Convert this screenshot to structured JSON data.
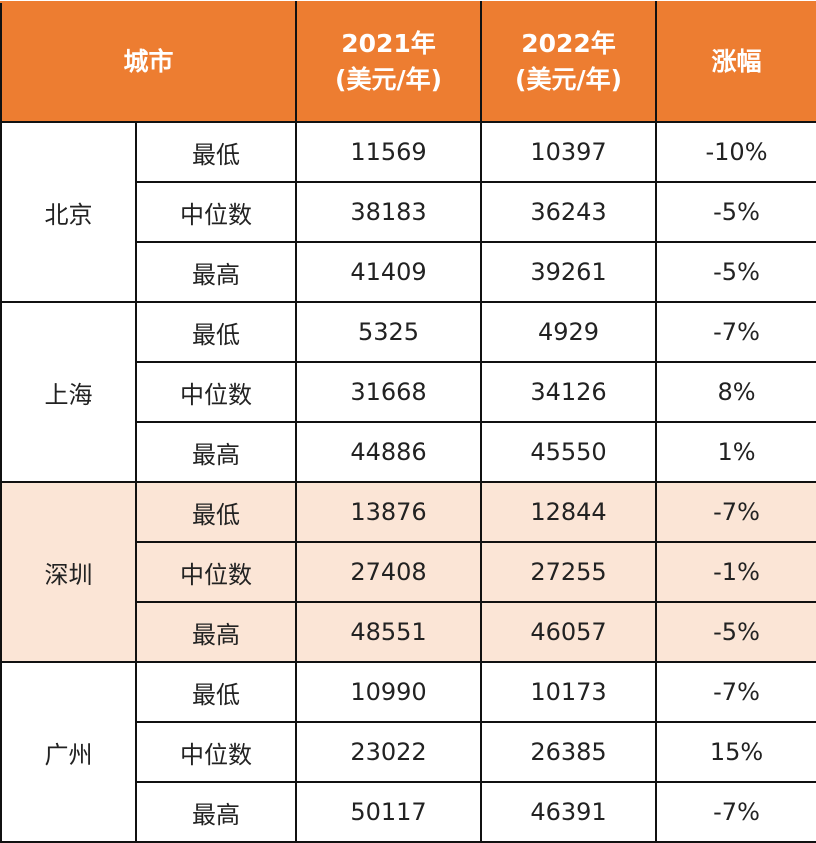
{
  "header": {
    "city": "城市",
    "y2021_line1": "2021年",
    "y2021_line2": "(美元/年)",
    "y2022_line1": "2022年",
    "y2022_line2": "(美元/年)",
    "change": "涨幅"
  },
  "colors": {
    "header_bg": "#ED7D31",
    "highlight_bg": "#FBE5D6"
  },
  "cities": [
    {
      "name": "北京",
      "highlight": false,
      "rows": [
        {
          "level": "最低",
          "y2021": "11569",
          "y2022": "10397",
          "change": "-10%"
        },
        {
          "level": "中位数",
          "y2021": "38183",
          "y2022": "36243",
          "change": "-5%"
        },
        {
          "level": "最高",
          "y2021": "41409",
          "y2022": "39261",
          "change": "-5%"
        }
      ]
    },
    {
      "name": "上海",
      "highlight": false,
      "rows": [
        {
          "level": "最低",
          "y2021": "5325",
          "y2022": "4929",
          "change": "-7%"
        },
        {
          "level": "中位数",
          "y2021": "31668",
          "y2022": "34126",
          "change": "8%"
        },
        {
          "level": "最高",
          "y2021": "44886",
          "y2022": "45550",
          "change": "1%"
        }
      ]
    },
    {
      "name": "深圳",
      "highlight": true,
      "rows": [
        {
          "level": "最低",
          "y2021": "13876",
          "y2022": "12844",
          "change": "-7%"
        },
        {
          "level": "中位数",
          "y2021": "27408",
          "y2022": "27255",
          "change": "-1%"
        },
        {
          "level": "最高",
          "y2021": "48551",
          "y2022": "46057",
          "change": "-5%"
        }
      ]
    },
    {
      "name": "广州",
      "highlight": false,
      "rows": [
        {
          "level": "最低",
          "y2021": "10990",
          "y2022": "10173",
          "change": "-7%"
        },
        {
          "level": "中位数",
          "y2021": "23022",
          "y2022": "26385",
          "change": "15%"
        },
        {
          "level": "最高",
          "y2021": "50117",
          "y2022": "46391",
          "change": "-7%"
        }
      ]
    }
  ]
}
